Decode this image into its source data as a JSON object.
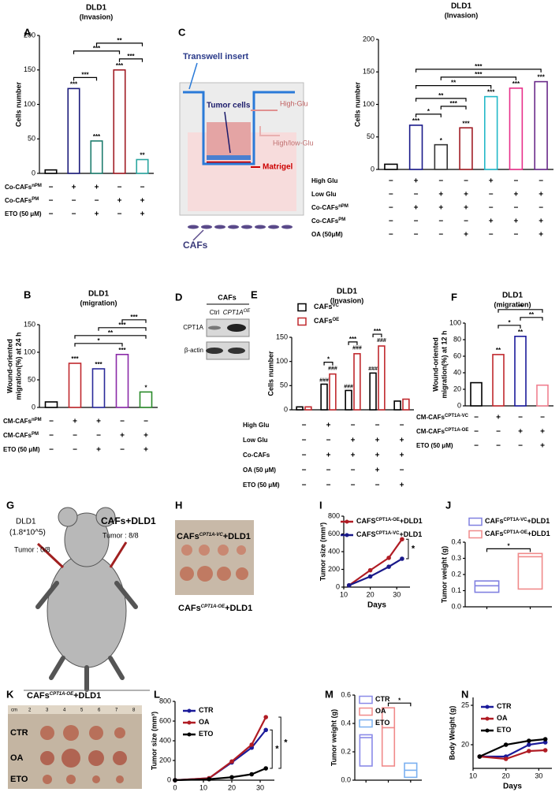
{
  "chart_data": [
    {
      "panel": "A",
      "type": "bar",
      "title": "DLD1",
      "subtitle": "(Invasion)",
      "ylabel": [
        "Cells number"
      ],
      "ylim": [
        0,
        200
      ],
      "yticks": [
        0,
        50,
        100,
        150,
        200
      ],
      "values": [
        5,
        123,
        47,
        150,
        20
      ],
      "colors": [
        "#000000",
        "#1a1a7a",
        "#1e7d6e",
        "#a01c24",
        "#2aa6a0"
      ],
      "stars": [
        null,
        "***",
        "***",
        "***",
        "**"
      ],
      "comparisons": [
        {
          "between": [
            1,
            2
          ],
          "label": "***"
        },
        {
          "between": [
            3,
            4
          ],
          "label": "***"
        },
        {
          "between": [
            1,
            3
          ],
          "label": "***"
        },
        {
          "between": [
            2,
            4
          ],
          "label": "**"
        }
      ],
      "rows": [
        {
          "label": "Co-CAFs",
          "sup": "nPM",
          "signs": [
            "−",
            "+",
            "+",
            "−",
            "−"
          ]
        },
        {
          "label": "Co-CAFs",
          "sup": "PM",
          "signs": [
            "−",
            "−",
            "−",
            "+",
            "+"
          ]
        },
        {
          "label": "ETO (50 μM)",
          "signs": [
            "−",
            "−",
            "+",
            "−",
            "+"
          ]
        }
      ]
    },
    {
      "panel": "C",
      "type": "bar",
      "title": "DLD1",
      "subtitle": "(Invasion)",
      "ylabel": [
        "Cells number"
      ],
      "ylim": [
        0,
        200
      ],
      "yticks": [
        0,
        50,
        100,
        150,
        200
      ],
      "values": [
        8,
        68,
        38,
        64,
        112,
        125,
        135
      ],
      "colors": [
        "#000000",
        "#1a1a8a",
        "#333333",
        "#a01c24",
        "#22b8c8",
        "#e8308a",
        "#6a2a8a"
      ],
      "stars": [
        null,
        "***",
        "*",
        "***",
        "***",
        "***",
        "***"
      ],
      "comparisons": [
        {
          "between": [
            1,
            2
          ],
          "label": "*"
        },
        {
          "between": [
            2,
            3
          ],
          "label": "***"
        },
        {
          "between": [
            1,
            3
          ],
          "label": "**"
        },
        {
          "between": [
            1,
            4
          ],
          "label": "**"
        },
        {
          "between": [
            2,
            5
          ],
          "label": "***"
        },
        {
          "between": [
            1,
            6
          ],
          "label": "***"
        }
      ],
      "rows": [
        {
          "label": "High Glu",
          "signs": [
            "−",
            "+",
            "−",
            "−",
            "+",
            "−",
            "−"
          ]
        },
        {
          "label": "Low Glu",
          "signs": [
            "−",
            "−",
            "+",
            "+",
            "−",
            "+",
            "+"
          ]
        },
        {
          "label": "Co-CAFs",
          "sup": "nPM",
          "signs": [
            "−",
            "+",
            "+",
            "+",
            "−",
            "−",
            "−"
          ]
        },
        {
          "label": "Co-CAFs",
          "sup": "PM",
          "signs": [
            "−",
            "−",
            "−",
            "−",
            "+",
            "+",
            "+"
          ]
        },
        {
          "label": "OA (50μM)",
          "signs": [
            "−",
            "−",
            "−",
            "+",
            "−",
            "−",
            "+"
          ]
        }
      ]
    },
    {
      "panel": "B",
      "type": "bar",
      "title": "DLD1",
      "subtitle": "(migration)",
      "ylabel": [
        "Wound-oriented",
        "migration(%) at 24 h"
      ],
      "ylim": [
        0,
        150
      ],
      "yticks": [
        0,
        50,
        100,
        150
      ],
      "values": [
        10,
        80,
        70,
        96,
        28
      ],
      "colors": [
        "#000000",
        "#c0282d",
        "#2a2a9a",
        "#8a2aa8",
        "#2a8a2a"
      ],
      "stars": [
        null,
        "***",
        "***",
        "***",
        "*"
      ],
      "comparisons": [
        {
          "between": [
            1,
            3
          ],
          "label": "*"
        },
        {
          "between": [
            1,
            4
          ],
          "label": "**"
        },
        {
          "between": [
            2,
            4
          ],
          "label": "***"
        },
        {
          "between": [
            3,
            4
          ],
          "label": "***"
        }
      ],
      "rows": [
        {
          "label": "CM-CAFs",
          "sup": "nPM",
          "signs": [
            "−",
            "+",
            "+",
            "−",
            "−"
          ]
        },
        {
          "label": "CM-CAFs",
          "sup": "PM",
          "signs": [
            "−",
            "−",
            "−",
            "+",
            "+"
          ]
        },
        {
          "label": "ETO (50 μM)",
          "signs": [
            "−",
            "−",
            "+",
            "−",
            "+"
          ]
        }
      ]
    },
    {
      "panel": "E",
      "type": "bar",
      "title": "DLD1",
      "subtitle": "(Invasion)",
      "ylabel": [
        "Cells number"
      ],
      "ylim": [
        0,
        150
      ],
      "yticks": [
        0,
        50,
        100,
        150
      ],
      "series": [
        {
          "name": "CAFs",
          "name_sup": "VC",
          "color": "#000000",
          "values": [
            6,
            53,
            40,
            76,
            18
          ],
          "stars": [
            null,
            "###",
            "###",
            "###",
            null
          ]
        },
        {
          "name": "CAFs",
          "name_sup": "OE",
          "color": "#c0282d",
          "values": [
            6,
            74,
            116,
            132,
            22
          ],
          "stars": [
            null,
            "###",
            "###",
            "###",
            null
          ]
        }
      ],
      "comparisons": [
        {
          "group": 1,
          "label": "*"
        },
        {
          "group": 2,
          "label": "***"
        },
        {
          "group": 3,
          "label": "***"
        }
      ],
      "rows": [
        {
          "label": "High Glu",
          "signs": [
            "−",
            "+",
            "−",
            "−",
            "−"
          ]
        },
        {
          "label": "Low Glu",
          "signs": [
            "−",
            "−",
            "+",
            "+",
            "+"
          ]
        },
        {
          "label": "Co-CAFs",
          "signs": [
            "−",
            "+",
            "+",
            "+",
            "+"
          ]
        },
        {
          "label": "OA (50 μM)",
          "signs": [
            "−",
            "−",
            "−",
            "+",
            "−"
          ]
        },
        {
          "label": "ETO (50 μM)",
          "signs": [
            "−",
            "−",
            "−",
            "−",
            "+"
          ]
        }
      ]
    },
    {
      "panel": "F",
      "type": "bar",
      "title": "DLD1",
      "subtitle": "(migration)",
      "ylabel": [
        "Wound-oriented",
        "migration(%) at 12 h"
      ],
      "ylim": [
        0,
        100
      ],
      "yticks": [
        0,
        20,
        40,
        60,
        80,
        100
      ],
      "values": [
        28,
        62,
        84,
        25
      ],
      "colors": [
        "#000000",
        "#c0282d",
        "#1a1a9a",
        "#f08090"
      ],
      "stars": [
        null,
        "**",
        "**",
        null
      ],
      "comparisons": [
        {
          "between": [
            1,
            2
          ],
          "label": "*"
        },
        {
          "between": [
            2,
            3
          ],
          "label": "**"
        },
        {
          "between": [
            1,
            3
          ],
          "label": "**"
        }
      ],
      "rows": [
        {
          "label": "CM-CAFs",
          "sup": "CPT1A-VC",
          "signs": [
            "−",
            "+",
            "−",
            "−"
          ]
        },
        {
          "label": "CM-CAFs",
          "sup": "CPT1A-OE",
          "signs": [
            "−",
            "−",
            "+",
            "+"
          ]
        },
        {
          "label": "ETO (50 μM)",
          "signs": [
            "−",
            "−",
            "−",
            "+"
          ]
        }
      ]
    },
    {
      "panel": "I",
      "type": "line",
      "xlabel": "Days",
      "ylabel": [
        "Tumor size (mm³)"
      ],
      "x": [
        12,
        20,
        27,
        32
      ],
      "xlim": [
        10,
        35
      ],
      "xticks": [
        10,
        20,
        30
      ],
      "ylim": [
        0,
        800
      ],
      "yticks": [
        0,
        200,
        400,
        600,
        800
      ],
      "series": [
        {
          "name": "CAFS",
          "name_sup": "CPT1A-OE",
          "name_suffix": "+DLD1",
          "color": "#b01c24",
          "values": [
            20,
            190,
            330,
            540
          ]
        },
        {
          "name": "CAFS",
          "name_sup": "CPT1A-VC",
          "name_suffix": "+DLD1",
          "color": "#1a1a8a",
          "values": [
            20,
            120,
            230,
            320
          ]
        }
      ],
      "annotations": [
        "*"
      ]
    },
    {
      "panel": "J",
      "type": "box",
      "ylabel": [
        "Tumor weight (g)"
      ],
      "ylim": [
        0,
        0.4
      ],
      "yticks": [
        {
          "value": 0,
          "label": "0.0"
        },
        0.1,
        0.2,
        0.3,
        0.4
      ],
      "series": [
        {
          "name": "CAFs",
          "name_sup": "CPT1A-VC",
          "name_suffix": "+DLD1",
          "color": "#8080e0",
          "min": 0.09,
          "median": 0.13,
          "max": 0.16
        },
        {
          "name": "CAFs",
          "name_sup": "CPT1A-OE",
          "name_suffix": "+DLD1",
          "color": "#f08a8a",
          "min": 0.11,
          "median": 0.31,
          "max": 0.33
        }
      ],
      "comparisons": [
        {
          "between": [
            0,
            1
          ],
          "label": "*"
        }
      ]
    },
    {
      "panel": "L",
      "type": "line",
      "xlabel": "Days",
      "ylabel": [
        "Tumor size (mm³)"
      ],
      "x": [
        0,
        12,
        20,
        27,
        32
      ],
      "xlim": [
        0,
        35
      ],
      "xticks": [
        0,
        10,
        20,
        30
      ],
      "ylim": [
        0,
        800
      ],
      "yticks": [
        0,
        200,
        400,
        600,
        800
      ],
      "series": [
        {
          "name": "CTR",
          "color": "#1a1a9a",
          "values": [
            0,
            20,
            180,
            330,
            510
          ]
        },
        {
          "name": "OA",
          "color": "#b01c24",
          "values": [
            0,
            20,
            190,
            360,
            640
          ]
        },
        {
          "name": "ETO",
          "color": "#000000",
          "values": [
            0,
            10,
            30,
            60,
            120
          ]
        }
      ],
      "annotations": [
        "*",
        "*"
      ]
    },
    {
      "panel": "M",
      "type": "box",
      "ylabel": [
        "Tumor weight (g)"
      ],
      "ylim": [
        0,
        0.6
      ],
      "yticks": [
        {
          "value": 0,
          "label": "0.0"
        },
        0.2,
        0.4,
        0.6
      ],
      "series": [
        {
          "name": "CTR",
          "color": "#8a8ae8",
          "min": 0.1,
          "median": 0.3,
          "max": 0.32
        },
        {
          "name": "OA",
          "color": "#f08a8a",
          "min": 0.1,
          "median": 0.37,
          "max": 0.51
        },
        {
          "name": "ETO",
          "color": "#7ab0f0",
          "min": 0.02,
          "median": 0.07,
          "max": 0.12
        }
      ],
      "comparisons": [
        {
          "between": [
            1,
            2
          ],
          "label": "*"
        }
      ]
    },
    {
      "panel": "N",
      "type": "line",
      "xlabel": "Days",
      "ylabel": [
        "Body Weight (g)"
      ],
      "x": [
        12,
        20,
        27,
        32
      ],
      "xlim": [
        10,
        34
      ],
      "xticks": [
        10,
        20,
        30
      ],
      "ylim": [
        17,
        26
      ],
      "yticks": [
        20,
        25
      ],
      "series": [
        {
          "name": "CTR",
          "color": "#1a1a9a",
          "values": [
            18.5,
            18.5,
            20,
            20.3
          ]
        },
        {
          "name": "OA",
          "color": "#b01c24",
          "values": [
            18.5,
            18.2,
            19.2,
            19.3
          ]
        },
        {
          "name": "ETO",
          "color": "#000000",
          "values": [
            18.5,
            20,
            20.5,
            20.7
          ]
        }
      ]
    }
  ],
  "diagram_C": {
    "labels": [
      "Transwell insert",
      "Tumor cells",
      "High-Glu",
      "High/low-Glu",
      "Matrigel",
      "CAFs"
    ]
  },
  "blot_D": {
    "panel": "D",
    "header": "CAFs",
    "lane1": "Ctrl",
    "lane2": "CPT1A",
    "lane2_sup": "OE",
    "bands": [
      "CPT1A",
      "β-actin"
    ]
  },
  "mouse_G": {
    "panel": "G",
    "left": [
      "DLD1",
      "(1.8*10^5)",
      "Tumor : 0/8"
    ],
    "right": [
      "CAFs+DLD1",
      "Tumor : 8/8"
    ]
  },
  "photo_H": {
    "panel": "H",
    "top": {
      "text": "CAFs",
      "sup": "CPT1A-VC",
      "suffix": "+DLD1"
    },
    "bottom": {
      "text": "CAFs",
      "sup": "CPT1A-OE",
      "suffix": "+DLD1"
    }
  },
  "photo_K": {
    "panel": "K",
    "title": {
      "text": "CAFs",
      "sup": "CPT1A-OE",
      "suffix": "+DLD1"
    },
    "rows": [
      "CTR",
      "OA",
      "ETO"
    ],
    "ruler": [
      "cm",
      "2",
      "3",
      "4",
      "5",
      "6",
      "7",
      "8"
    ]
  }
}
